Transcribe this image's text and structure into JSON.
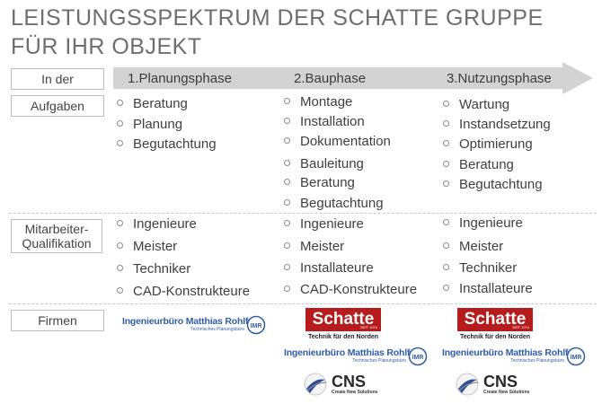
{
  "title_line1": "LEISTUNGSSPEKTRUM DER SCHATTE GRUPPE",
  "title_line2": "FÜR IHR OBJEKT",
  "phases": {
    "in_der": "In der",
    "p1": "1.Planungsphase",
    "p2": "2.Bauphase",
    "p3": "3.Nutzungsphase"
  },
  "rows": {
    "aufgaben": "Aufgaben",
    "mitarbeiter": "Mitarbeiter-Qualifikation",
    "firmen": "Firmen"
  },
  "aufgaben": {
    "planung": [
      "Beratung",
      "Planung",
      "Begutachtung"
    ],
    "bau": [
      "Montage",
      "Installation",
      "Dokumentation",
      "Bauleitung",
      "Beratung",
      "Begutachtung"
    ],
    "nutzung": [
      "Wartung",
      "Instandsetzung",
      "Optimierung",
      "Beratung",
      "Begutachtung"
    ]
  },
  "qualifikation": {
    "planung": [
      "Ingenieure",
      "Meister",
      "Techniker",
      "CAD-Konstrukteure"
    ],
    "bau": [
      "Ingenieure",
      "Meister",
      "Installateure",
      "CAD-Konstrukteure"
    ],
    "nutzung": [
      "Ingenieure",
      "Meister",
      "Techniker",
      "Installateure"
    ]
  },
  "logos": {
    "ingenieur": {
      "name": "Ingenieurbüro Matthias Rohlf",
      "sub": "Technisches Planungsbüro",
      "mark": "IMR"
    },
    "schatte": {
      "name": "Schatte",
      "seit": "SEIT 1974",
      "tag": "Technik für den Norden"
    },
    "cns": {
      "name": "CNS",
      "sub": "Create New Solutions"
    }
  },
  "colors": {
    "arrow": "#d3d3d3",
    "schatte_red": "#b71c1c",
    "ingenieur_blue": "#2f5fa6",
    "title": "#6e6e6e"
  }
}
